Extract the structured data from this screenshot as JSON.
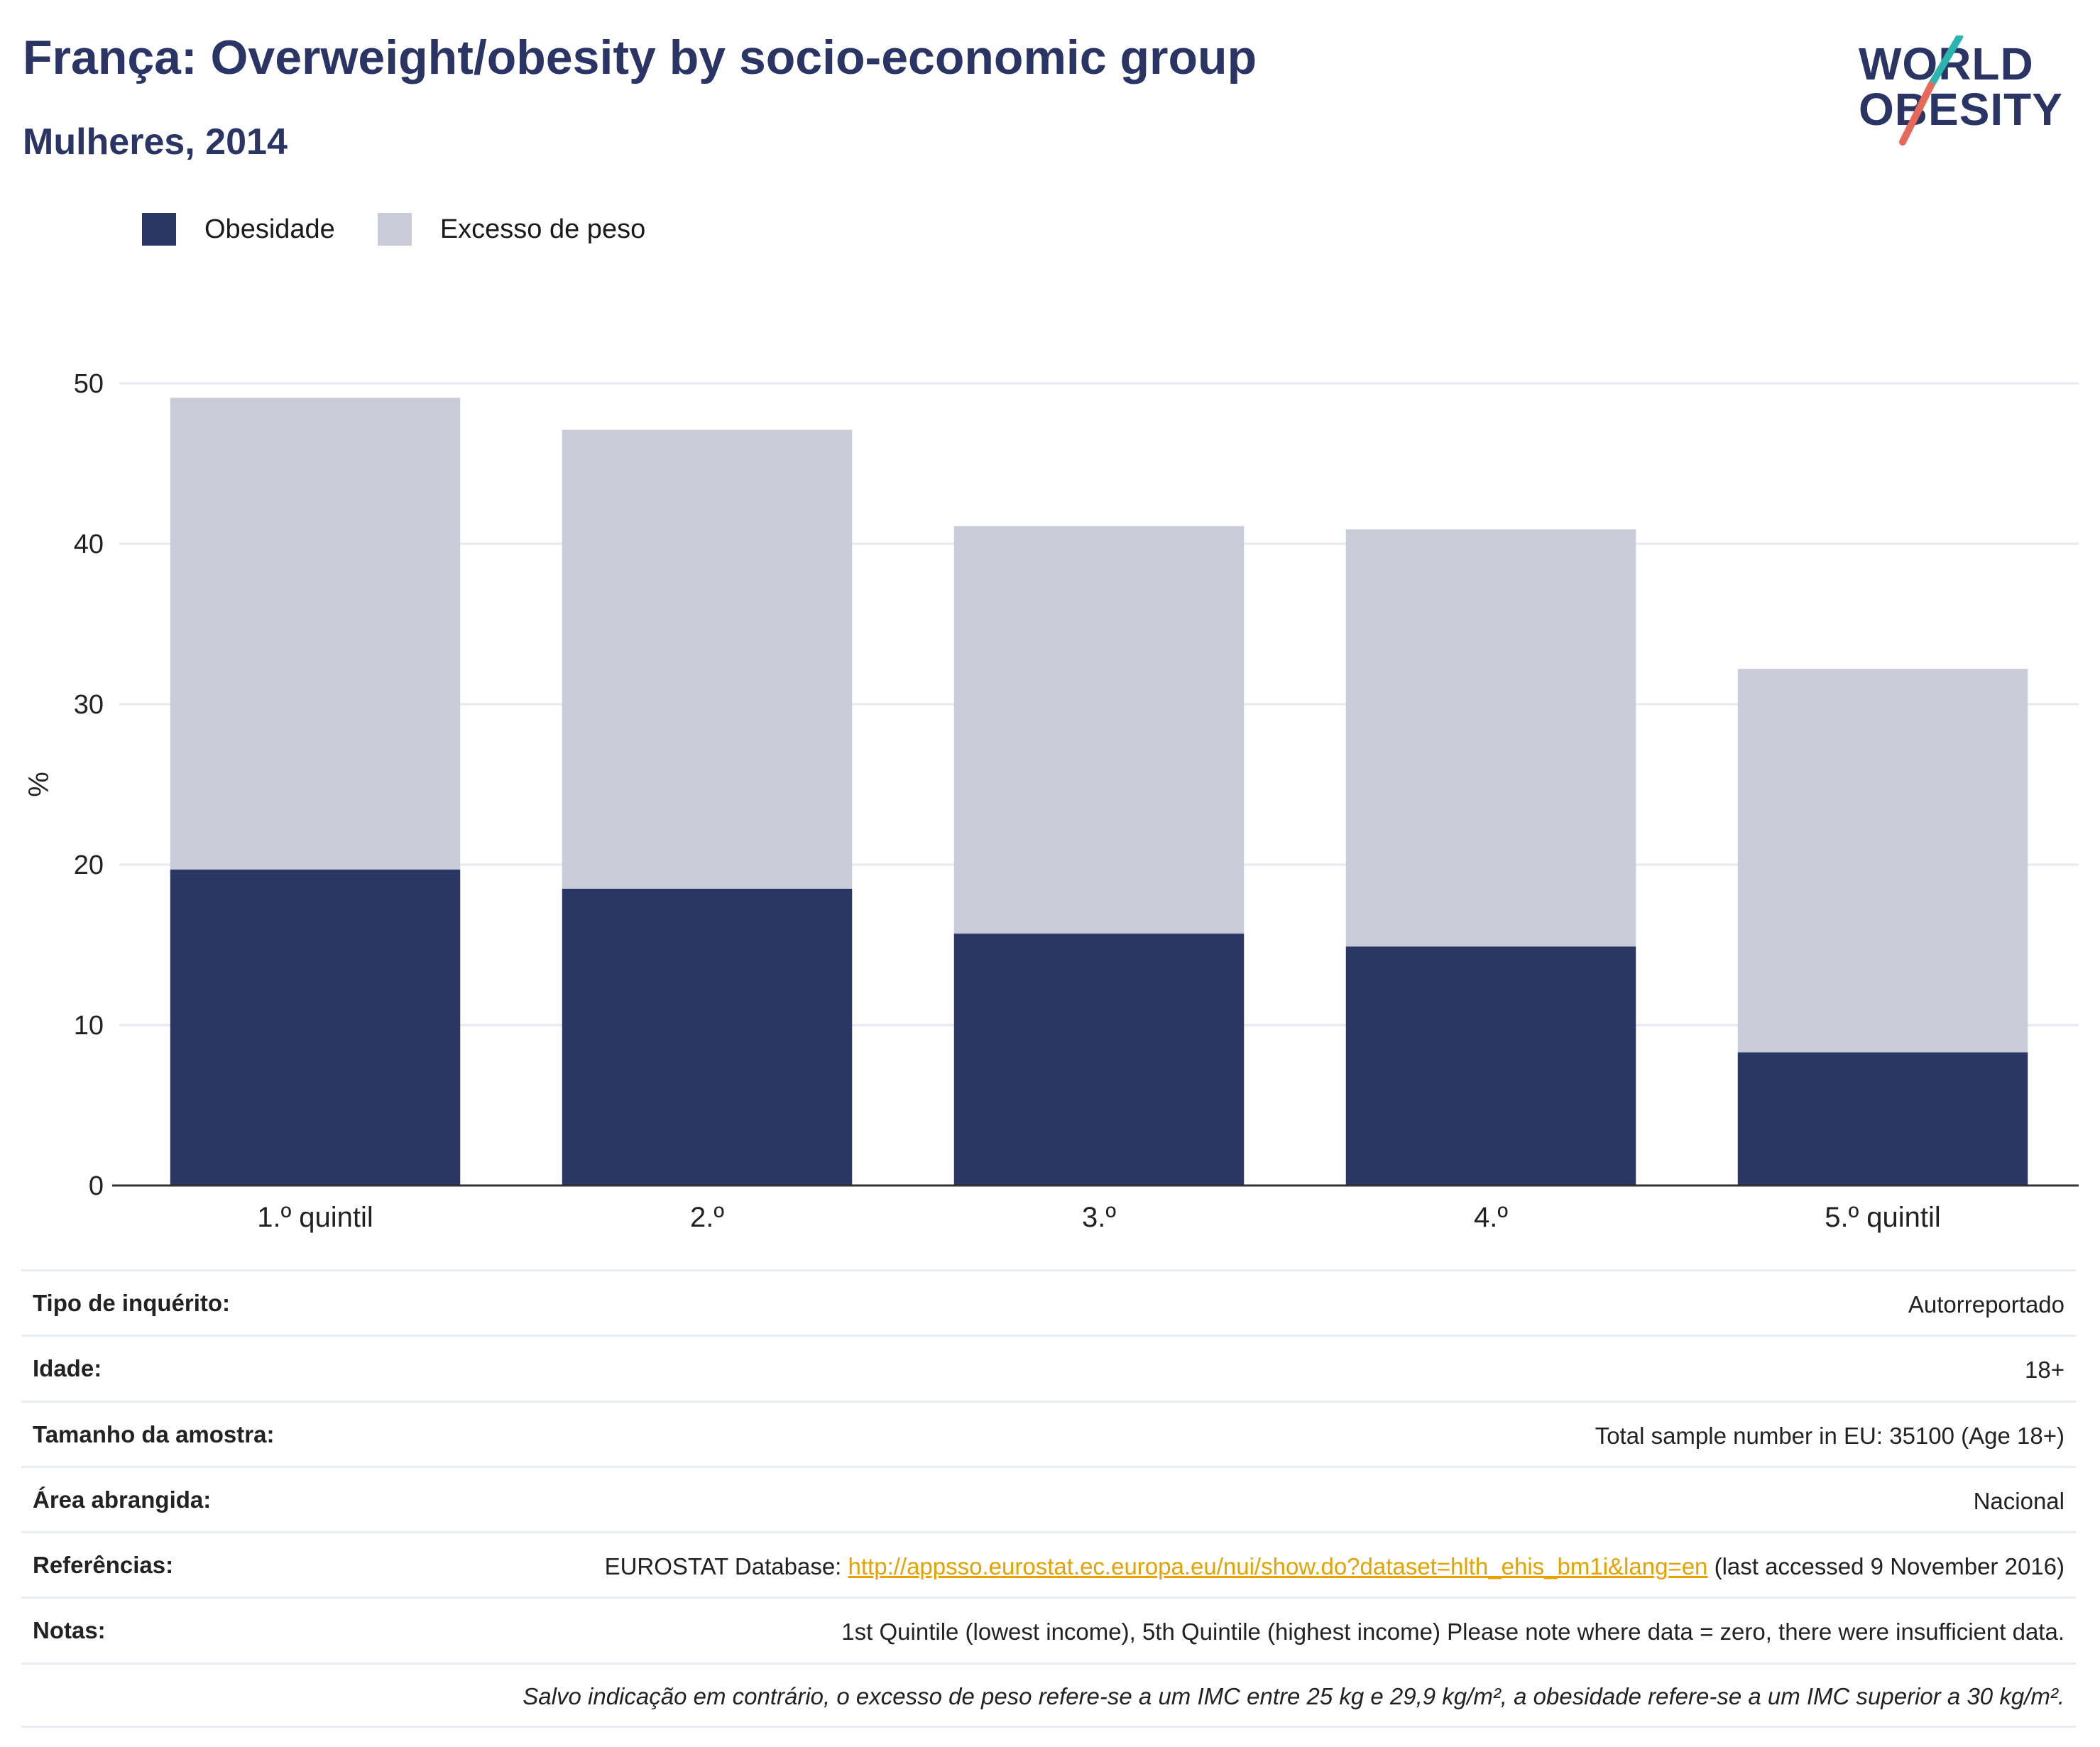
{
  "header": {
    "title": "França: Overweight/obesity by socio-economic group",
    "subtitle": "Mulheres, 2014"
  },
  "logo": {
    "line1": "WORLD",
    "line2": "OBESITY",
    "slash_top_color": "#2bb5b0",
    "slash_bottom_color": "#e8695a"
  },
  "colors": {
    "obesity": "#2a3663",
    "overweight": "#c9ccd8",
    "grid": "#e8eaf0",
    "axis": "#333333"
  },
  "chart_data": {
    "type": "bar",
    "stacked": true,
    "categories": [
      "1.º quintil",
      "2.º",
      "3.º",
      "4.º",
      "5.º quintil"
    ],
    "series": [
      {
        "name": "Obesidade",
        "values": [
          19.7,
          18.5,
          15.7,
          14.9,
          8.3
        ]
      },
      {
        "name": "Excesso de peso",
        "values": [
          29.4,
          28.6,
          25.4,
          26.0,
          23.9
        ]
      }
    ],
    "ylabel": "%",
    "ylim": [
      0,
      50
    ],
    "yticks": [
      0,
      10,
      20,
      30,
      40,
      50
    ],
    "grid": true,
    "legend_position": "top-left"
  },
  "info": {
    "survey_type_label": "Tipo de inquérito:",
    "survey_type_value": "Autorreportado",
    "age_label": "Idade:",
    "age_value": "18+",
    "sample_label": "Tamanho da amostra:",
    "sample_value": "Total sample number in EU: 35100 (Age 18+)",
    "area_label": "Área abrangida:",
    "area_value": "Nacional",
    "refs_label": "Referências:",
    "refs_prefix": "EUROSTAT Database: ",
    "refs_link": "http://appsso.eurostat.ec.europa.eu/nui/show.do?dataset=hlth_ehis_bm1i&lang=en",
    "refs_suffix": " (last accessed 9 November 2016)",
    "notes_label": "Notas:",
    "notes_value": "1st Quintile (lowest income), 5th Quintile (highest income) Please note where data = zero, there were insufficient data.",
    "definition_note": "Salvo indicação em contrário, o excesso de peso refere-se a um IMC entre 25 kg e 29,9 kg/m², a obesidade refere-se a um IMC superior a 30 kg/m²."
  }
}
